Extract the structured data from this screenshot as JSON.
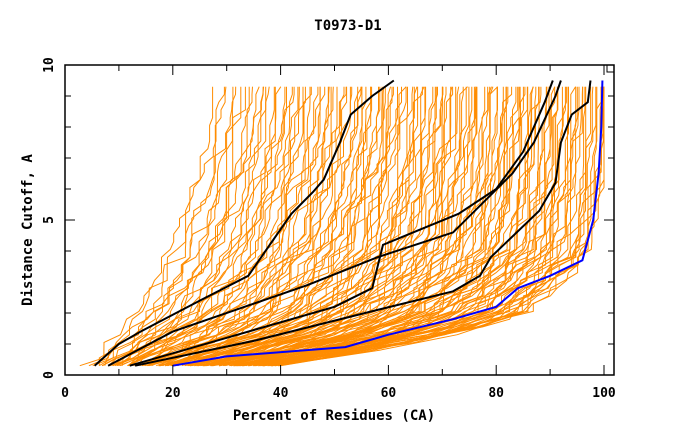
{
  "chart_data": {
    "type": "line",
    "title": "T0973-D1",
    "xlabel": "Percent of Residues (CA)",
    "ylabel": "Distance Cutoff, A",
    "xlim": [
      0,
      101
    ],
    "ylim": [
      0,
      10
    ],
    "x_ticks": [
      "0",
      "20",
      "40",
      "60",
      "80",
      "100"
    ],
    "y_ticks": [
      "0",
      "5",
      "10"
    ],
    "grid": false,
    "legend": "none",
    "colors": {
      "background_models": "#ff8c00",
      "highlight": "#000000",
      "best": "#0000ff",
      "axis": "#000000"
    },
    "series": [
      {
        "name": "black-1",
        "color": "#000000",
        "points": [
          [
            5.5,
            0.3
          ],
          [
            10,
            1.0
          ],
          [
            14,
            1.4
          ],
          [
            25,
            2.4
          ],
          [
            34,
            3.2
          ],
          [
            38,
            4.2
          ],
          [
            42,
            5.2
          ],
          [
            46,
            5.9
          ],
          [
            48,
            6.3
          ],
          [
            51,
            7.5
          ],
          [
            53,
            8.4
          ],
          [
            57,
            9.0
          ],
          [
            61,
            9.5
          ]
        ]
      },
      {
        "name": "black-2",
        "color": "#000000",
        "points": [
          [
            8,
            0.3
          ],
          [
            20,
            1.4
          ],
          [
            35,
            2.3
          ],
          [
            45,
            2.9
          ],
          [
            58,
            3.8
          ],
          [
            72,
            4.6
          ],
          [
            83,
            6.5
          ],
          [
            87,
            7.5
          ],
          [
            91,
            9.0
          ],
          [
            92,
            9.5
          ]
        ]
      },
      {
        "name": "black-3",
        "color": "#000000",
        "points": [
          [
            12,
            0.3
          ],
          [
            30,
            1.2
          ],
          [
            50,
            2.2
          ],
          [
            57,
            2.8
          ],
          [
            59,
            4.2
          ],
          [
            66,
            4.7
          ],
          [
            73,
            5.2
          ],
          [
            80,
            6.0
          ],
          [
            85,
            7.2
          ],
          [
            89,
            8.8
          ],
          [
            90.5,
            9.5
          ]
        ]
      },
      {
        "name": "black-4",
        "color": "#000000",
        "points": [
          [
            13,
            0.3
          ],
          [
            35,
            1.1
          ],
          [
            58,
            2.1
          ],
          [
            72,
            2.7
          ],
          [
            77,
            3.2
          ],
          [
            79,
            3.8
          ],
          [
            82,
            4.3
          ],
          [
            88,
            5.3
          ],
          [
            91,
            6.2
          ],
          [
            92,
            7.5
          ],
          [
            94,
            8.4
          ],
          [
            97,
            8.8
          ],
          [
            97.5,
            9.5
          ]
        ]
      },
      {
        "name": "blue-best",
        "color": "#0000ff",
        "points": [
          [
            20,
            0.3
          ],
          [
            30,
            0.6
          ],
          [
            52,
            0.9
          ],
          [
            60,
            1.3
          ],
          [
            72,
            1.8
          ],
          [
            80,
            2.2
          ],
          [
            84,
            2.8
          ],
          [
            90,
            3.2
          ],
          [
            96,
            3.7
          ],
          [
            98,
            5.0
          ],
          [
            99,
            6.5
          ],
          [
            99.5,
            8.0
          ],
          [
            99.7,
            9.5
          ]
        ]
      }
    ],
    "background_envelope": {
      "description": "hundreds of orange model curves spanning the region between left and right envelopes",
      "left_edge": [
        [
          4.5,
          0.3
        ],
        [
          8,
          1.0
        ],
        [
          12,
          1.8
        ],
        [
          16,
          3.0
        ],
        [
          20,
          4.5
        ],
        [
          24,
          6.5
        ],
        [
          26,
          8.0
        ],
        [
          27,
          9.5
        ]
      ],
      "right_edge": [
        [
          40,
          0.3
        ],
        [
          60,
          0.9
        ],
        [
          75,
          1.4
        ],
        [
          85,
          2.0
        ],
        [
          92,
          3.0
        ],
        [
          97,
          4.0
        ],
        [
          99,
          6.0
        ],
        [
          100,
          9.5
        ]
      ],
      "count": 150
    }
  }
}
